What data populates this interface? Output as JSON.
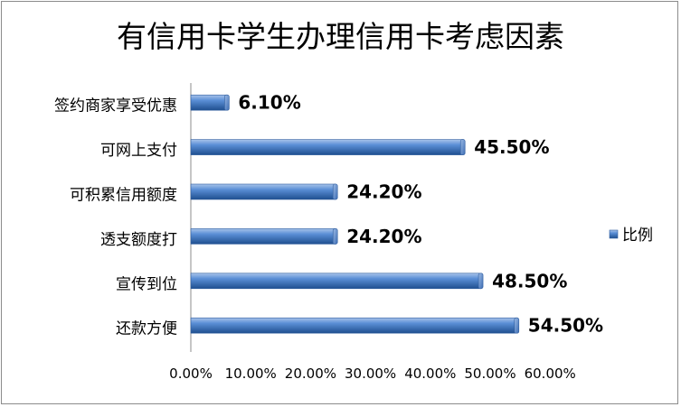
{
  "chart_data": {
    "type": "bar",
    "orientation": "horizontal",
    "title": "有信用卡学生办理信用卡考虑因素",
    "categories": [
      "签约商家享受优惠",
      "可网上支付",
      "可积累信用额度",
      "透支额度打",
      "宣传到位",
      "还款方便"
    ],
    "series": [
      {
        "name": "比例",
        "values": [
          6.1,
          45.5,
          24.2,
          24.2,
          48.5,
          54.5
        ],
        "data_labels": [
          "6.10%",
          "45.50%",
          "24.20%",
          "24.20%",
          "48.50%",
          "54.50%"
        ],
        "color": "#4f81bd"
      }
    ],
    "xlim": [
      0,
      60
    ],
    "x_ticks": [
      0,
      10,
      20,
      30,
      40,
      50,
      60
    ],
    "x_tick_labels": [
      "0.00%",
      "10.00%",
      "20.00%",
      "30.00%",
      "40.00%",
      "50.00%",
      "60.00%"
    ],
    "grid": false,
    "legend": "right"
  }
}
